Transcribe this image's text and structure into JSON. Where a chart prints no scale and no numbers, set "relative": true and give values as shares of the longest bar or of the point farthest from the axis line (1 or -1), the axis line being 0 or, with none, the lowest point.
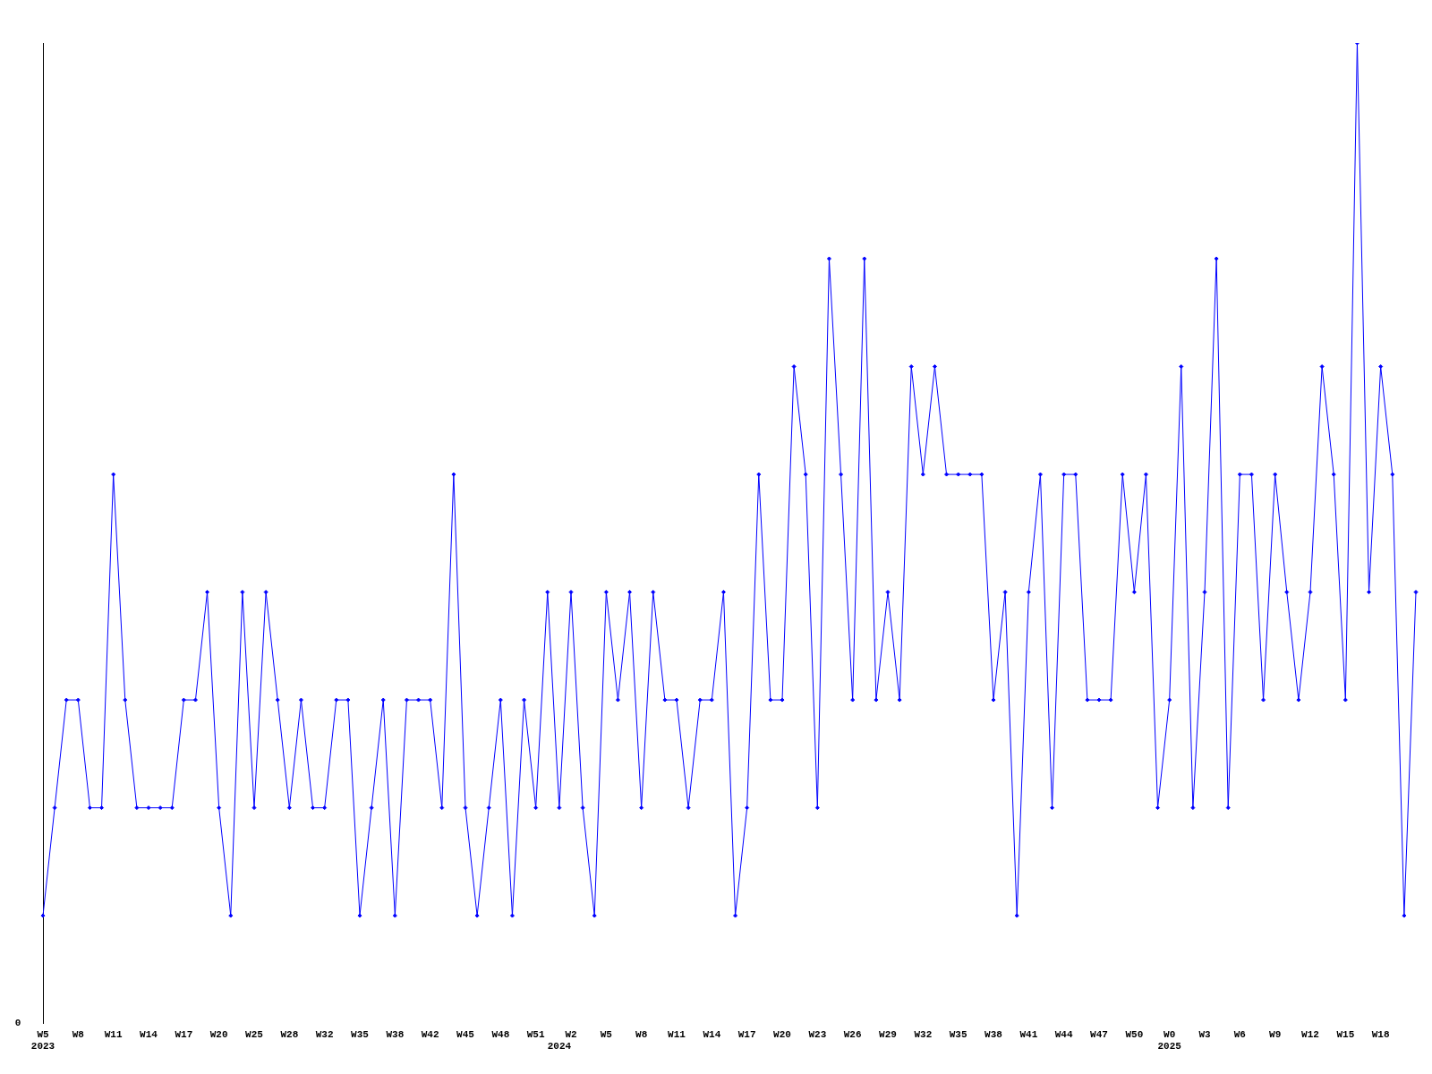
{
  "chart_data": {
    "type": "line",
    "relative": true,
    "color": "#0000ff",
    "marker": "diamond",
    "grid": false,
    "legend": false,
    "categories": [
      "W5\n2023",
      null,
      null,
      "W8",
      null,
      null,
      "W11",
      null,
      null,
      "W14",
      null,
      null,
      "W17",
      null,
      null,
      "W20",
      null,
      null,
      "W25",
      null,
      null,
      "W28",
      null,
      null,
      "W32",
      null,
      null,
      "W35",
      null,
      null,
      "W38",
      null,
      null,
      "W42",
      null,
      null,
      "W45",
      null,
      null,
      "W48",
      null,
      null,
      "W51",
      null,
      "\n2024",
      "W2",
      null,
      null,
      "W5",
      null,
      null,
      "W8",
      null,
      null,
      "W11",
      null,
      null,
      "W14",
      null,
      null,
      "W17",
      null,
      null,
      "W20",
      null,
      null,
      "W23",
      null,
      null,
      "W26",
      null,
      null,
      "W29",
      null,
      null,
      "W32",
      null,
      null,
      "W35",
      null,
      null,
      "W38",
      null,
      null,
      "W41",
      null,
      null,
      "W44",
      null,
      null,
      "W47",
      null,
      null,
      "W50",
      null,
      null,
      "W0\n2025",
      null,
      null,
      "W3",
      null,
      null,
      "W6",
      null,
      null,
      "W9",
      null,
      null,
      "W12",
      null,
      null,
      "W15",
      null,
      null,
      "W18",
      null,
      null,
      null
    ],
    "values": [
      0.11,
      0.22,
      0.33,
      0.33,
      0.22,
      0.22,
      0.56,
      0.33,
      0.22,
      0.22,
      0.22,
      0.22,
      0.33,
      0.33,
      0.44,
      0.22,
      0.11,
      0.44,
      0.22,
      0.44,
      0.33,
      0.22,
      0.33,
      0.22,
      0.22,
      0.33,
      0.33,
      0.11,
      0.22,
      0.33,
      0.11,
      0.33,
      0.33,
      0.33,
      0.22,
      0.56,
      0.22,
      0.11,
      0.22,
      0.33,
      0.11,
      0.33,
      0.22,
      0.44,
      0.22,
      0.44,
      0.22,
      0.11,
      0.44,
      0.33,
      0.44,
      0.22,
      0.44,
      0.33,
      0.33,
      0.22,
      0.33,
      0.33,
      0.44,
      0.11,
      0.22,
      0.56,
      0.33,
      0.33,
      0.67,
      0.56,
      0.22,
      0.78,
      0.56,
      0.33,
      0.78,
      0.33,
      0.44,
      0.33,
      0.67,
      0.56,
      0.67,
      0.56,
      0.56,
      0.56,
      0.56,
      0.33,
      0.44,
      0.11,
      0.44,
      0.56,
      0.22,
      0.56,
      0.56,
      0.33,
      0.33,
      0.33,
      0.56,
      0.44,
      0.56,
      0.22,
      0.33,
      0.67,
      0.22,
      0.44,
      0.78,
      0.22,
      0.56,
      0.56,
      0.33,
      0.56,
      0.44,
      0.33,
      0.44,
      0.67,
      0.56,
      0.33,
      1,
      0.44,
      0.67,
      0.56,
      0.11,
      0.44
    ],
    "annotations": [
      "0"
    ]
  }
}
